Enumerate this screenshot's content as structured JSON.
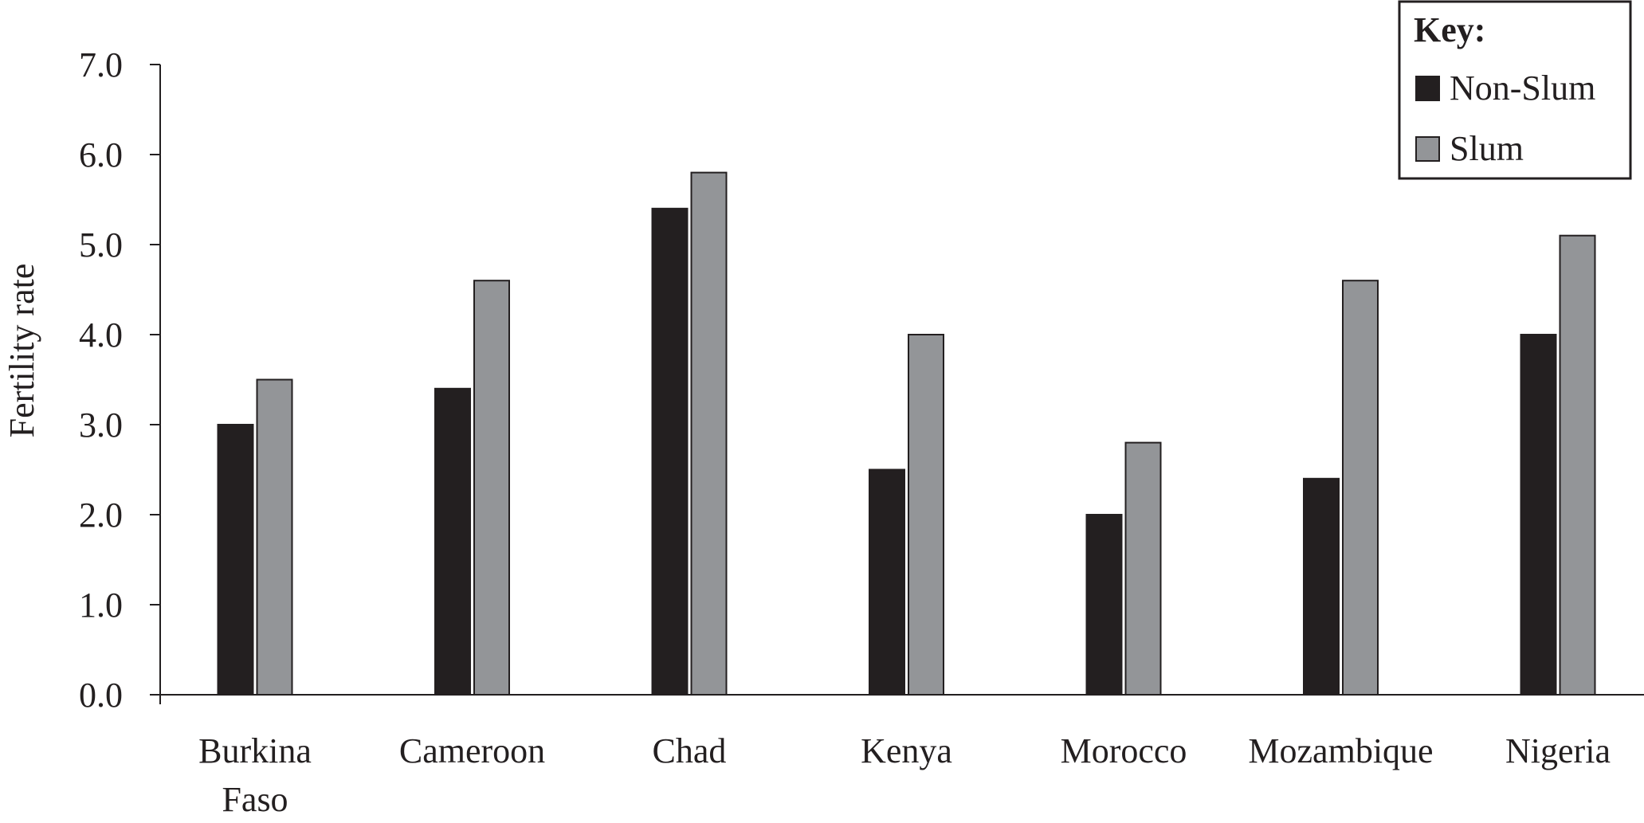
{
  "chart_data": {
    "type": "bar",
    "ylabel": "Fertility rate",
    "xlabel": "",
    "ylim": [
      0,
      7
    ],
    "yticks": [
      "0.0",
      "1.0",
      "2.0",
      "3.0",
      "4.0",
      "5.0",
      "6.0",
      "7.0"
    ],
    "categories": [
      [
        "Burkina",
        "Faso"
      ],
      [
        "Cameroon"
      ],
      [
        "Chad"
      ],
      [
        "Kenya"
      ],
      [
        "Morocco"
      ],
      [
        "Mozambique"
      ],
      [
        "Nigeria"
      ]
    ],
    "series": [
      {
        "name": "Non-Slum",
        "color": "#231f20",
        "values": [
          3.0,
          3.4,
          5.4,
          2.5,
          2.0,
          2.4,
          4.0
        ]
      },
      {
        "name": "Slum",
        "color": "#939598",
        "values": [
          3.5,
          4.6,
          5.8,
          4.0,
          2.8,
          4.6,
          5.1
        ]
      }
    ],
    "legend": {
      "title": "Key:",
      "position": "top-right"
    },
    "grid": false
  }
}
